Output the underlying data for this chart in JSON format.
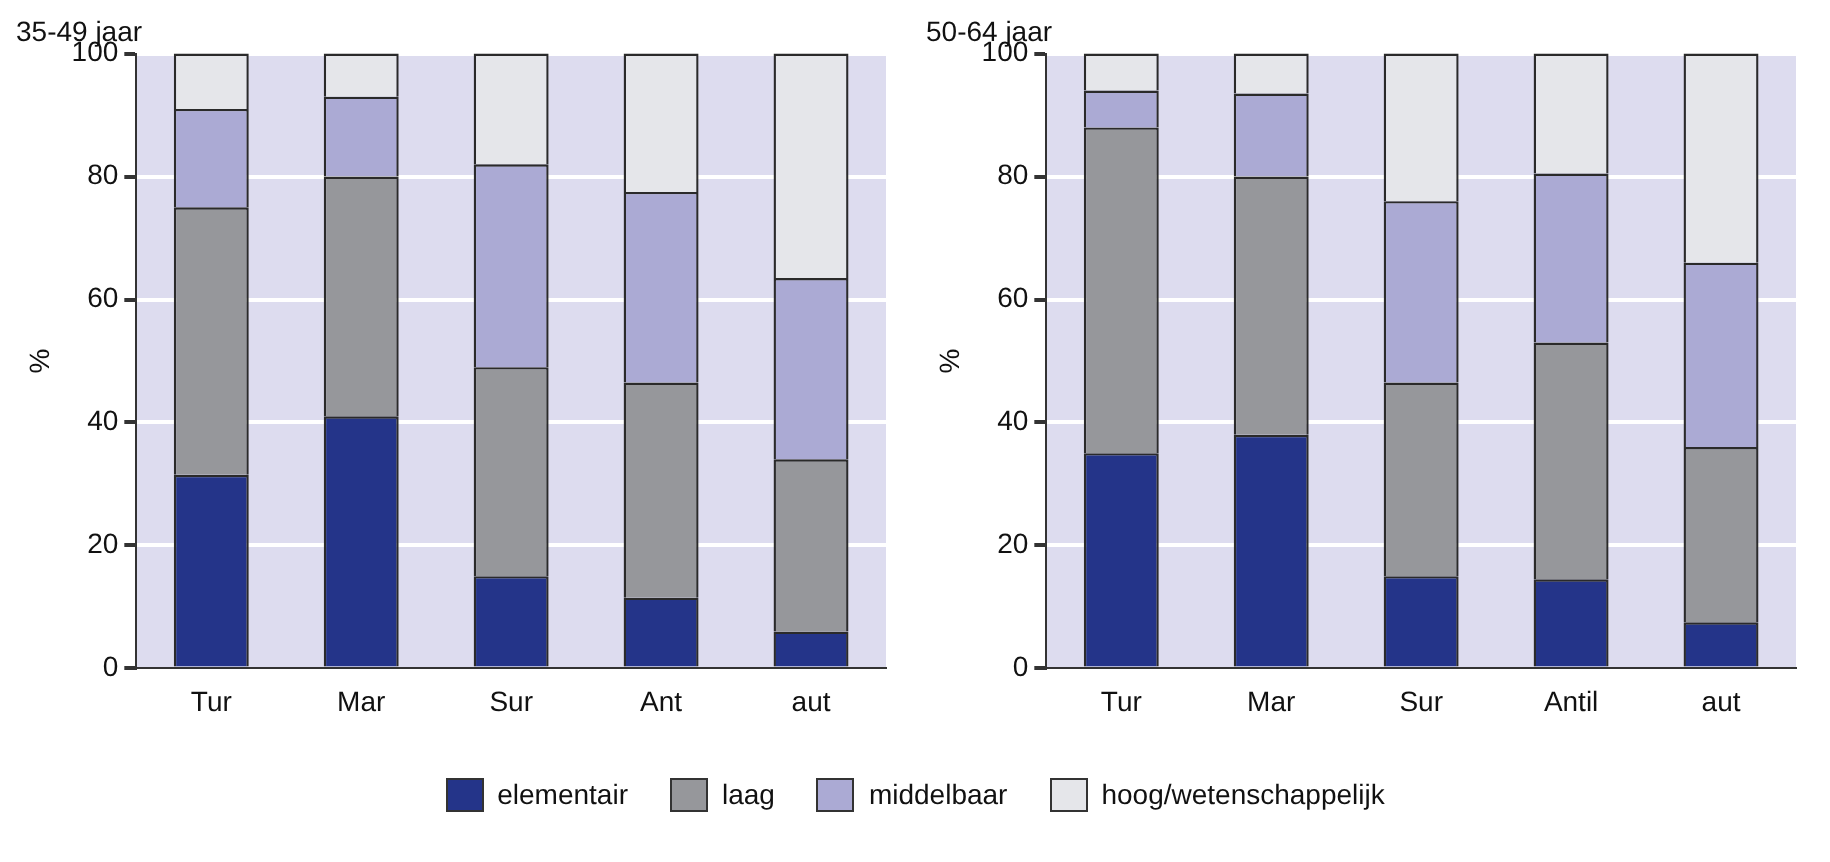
{
  "chart_data": [
    {
      "type": "bar",
      "title": "35-49 jaar",
      "ylabel": "%",
      "categories": [
        "Tur",
        "Mar",
        "Sur",
        "Ant",
        "aut"
      ],
      "stacked": true,
      "ylim": [
        0,
        100
      ],
      "yticks": [
        0,
        20,
        40,
        60,
        80,
        100
      ],
      "grid": "y",
      "legend": "bottom",
      "series": [
        {
          "name": "elementair",
          "color": "#243489",
          "values": [
            31.5,
            41,
            15,
            11.5,
            6
          ]
        },
        {
          "name": "laag",
          "color": "#96979b",
          "values": [
            43.5,
            39,
            34,
            35,
            28
          ]
        },
        {
          "name": "middelbaar",
          "color": "#abaad4",
          "values": [
            16,
            13,
            33,
            31,
            29.5
          ]
        },
        {
          "name": "hoog/wetenschappelijk",
          "color": "#e5e6ea",
          "values": [
            9,
            7,
            18,
            22.5,
            36.5
          ]
        }
      ]
    },
    {
      "type": "bar",
      "title": "50-64 jaar",
      "ylabel": "%",
      "categories": [
        "Tur",
        "Mar",
        "Sur",
        "Antil",
        "aut"
      ],
      "stacked": true,
      "ylim": [
        0,
        100
      ],
      "yticks": [
        0,
        20,
        40,
        60,
        80,
        100
      ],
      "grid": "y",
      "series": [
        {
          "color": "#243489",
          "values": [
            35,
            38,
            15,
            14.5,
            7.5
          ]
        },
        {
          "color": "#96979b",
          "values": [
            53,
            42,
            31.5,
            38.5,
            28.5
          ]
        },
        {
          "color": "#abaad4",
          "values": [
            6,
            13.5,
            29.5,
            27.5,
            30
          ]
        },
        {
          "color": "#e5e6ea",
          "values": [
            6,
            6.5,
            24,
            19.5,
            34
          ]
        }
      ]
    }
  ]
}
